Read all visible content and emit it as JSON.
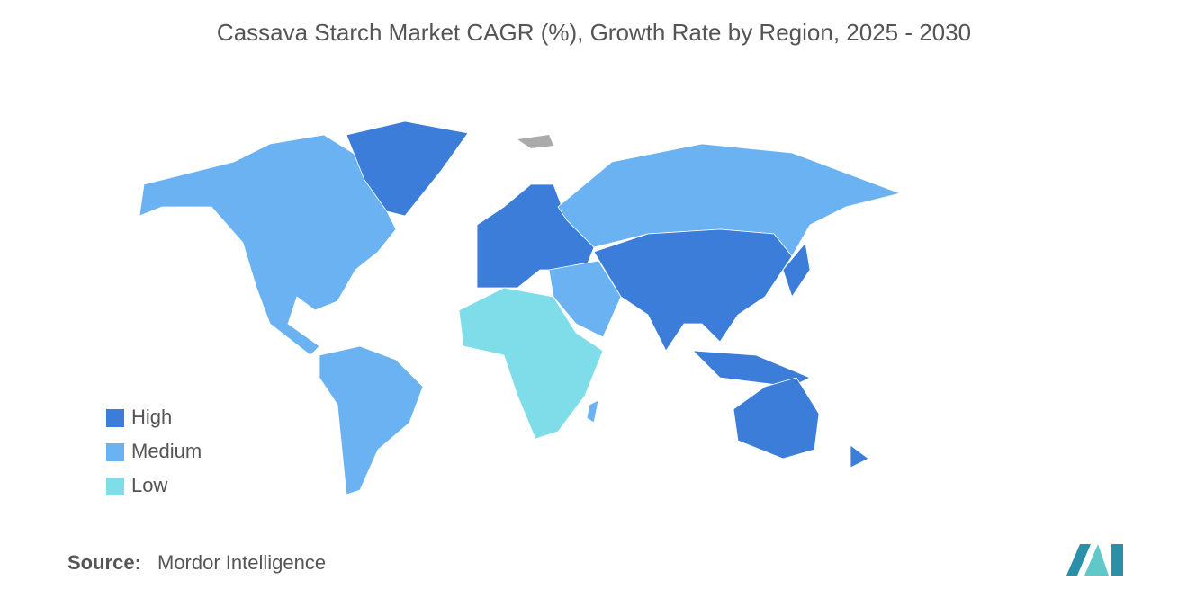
{
  "title": "Cassava Starch Market CAGR (%), Growth Rate by Region, 2025 - 2030",
  "legend": [
    {
      "label": "High",
      "color": "#3b7dd8"
    },
    {
      "label": "Medium",
      "color": "#6ab2f2"
    },
    {
      "label": "Low",
      "color": "#7fdde9"
    }
  ],
  "source": {
    "label": "Source:",
    "text": "Mordor Intelligence"
  }
}
